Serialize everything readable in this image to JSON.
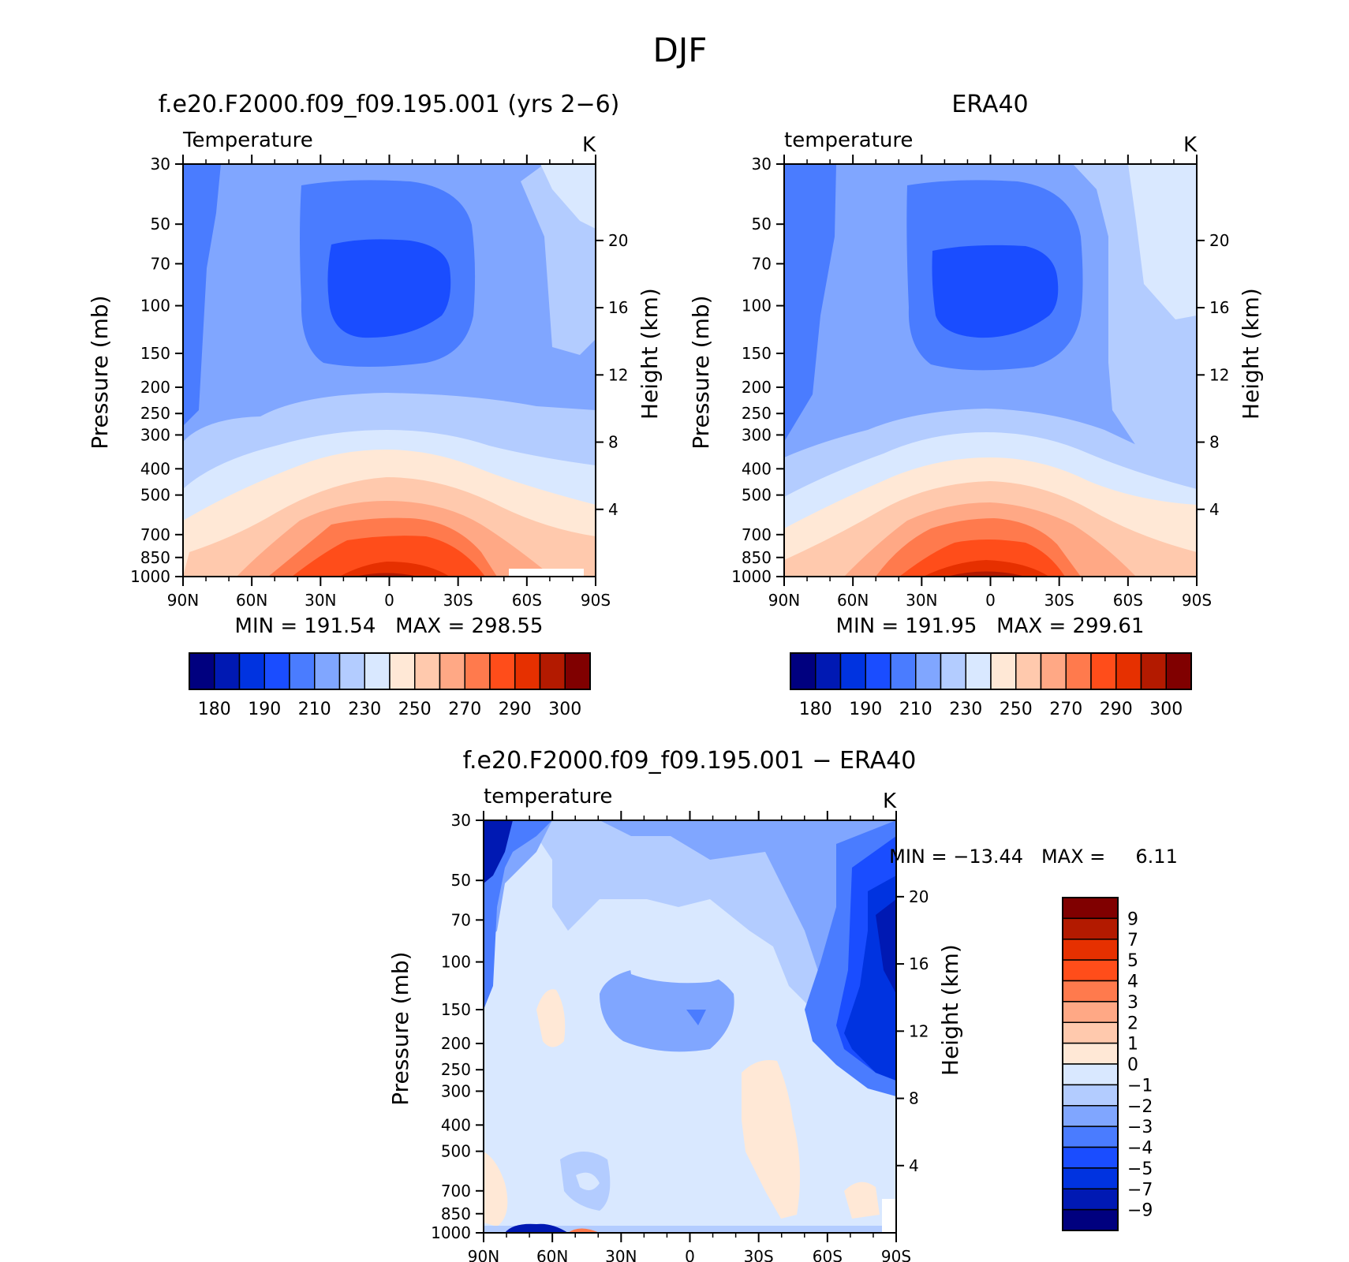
{
  "chart_data": {
    "type": "contour",
    "title": "DJF",
    "pressure_ticks": [
      "30",
      "50",
      "70",
      "100",
      "150",
      "200",
      "250",
      "300",
      "400",
      "500",
      "700",
      "850",
      "1000"
    ],
    "height_ticks": [
      "20",
      "16",
      "12",
      "8",
      "4"
    ],
    "lat_ticks": [
      "90N",
      "60N",
      "30N",
      "0",
      "30S",
      "60S",
      "90S"
    ],
    "ylabel_left": "Pressure (mb)",
    "ylabel_right": "Height (km)",
    "panels": [
      {
        "title": "f.e20.F2000.f09_f09.195.001 (yrs 2−6)",
        "subtitle": "Temperature",
        "units": "K",
        "stats": "MIN = 191.54   MAX = 298.55",
        "min": 191.54,
        "max": 298.55,
        "colorbar_labels": [
          "180",
          "190",
          "210",
          "230",
          "250",
          "270",
          "290",
          "300"
        ]
      },
      {
        "title": "ERA40",
        "subtitle": "temperature",
        "units": "K",
        "stats": "MIN = 191.95   MAX = 299.61",
        "min": 191.95,
        "max": 299.61,
        "colorbar_labels": [
          "180",
          "190",
          "210",
          "230",
          "250",
          "270",
          "290",
          "300"
        ]
      },
      {
        "title": "f.e20.F2000.f09_f09.195.001 − ERA40",
        "subtitle": "temperature",
        "units": "K",
        "stats": "MIN = −13.44   MAX =     6.11",
        "min": -13.44,
        "max": 6.11,
        "colorbar_labels": [
          "9",
          "7",
          "5",
          "4",
          "3",
          "2",
          "1",
          "0",
          "−1",
          "−2",
          "−3",
          "−4",
          "−5",
          "−7",
          "−9"
        ]
      }
    ],
    "temperature_palette": [
      "#00007f",
      "#0019b3",
      "#0033e0",
      "#1a4dff",
      "#4a7cff",
      "#80a6ff",
      "#b3ccff",
      "#d9e8ff",
      "#ffe8d6",
      "#ffc9ad",
      "#ffa885",
      "#ff7a4d",
      "#ff4d1a",
      "#e63000",
      "#b31a00",
      "#800000"
    ],
    "difference_palette": [
      "#800000",
      "#b31a00",
      "#e63000",
      "#ff4d1a",
      "#ff7a4d",
      "#ffa885",
      "#ffc9ad",
      "#ffe8d6",
      "#d9e8ff",
      "#b3ccff",
      "#80a6ff",
      "#4a7cff",
      "#1a4dff",
      "#0033e0",
      "#0019b3",
      "#00007f"
    ]
  }
}
